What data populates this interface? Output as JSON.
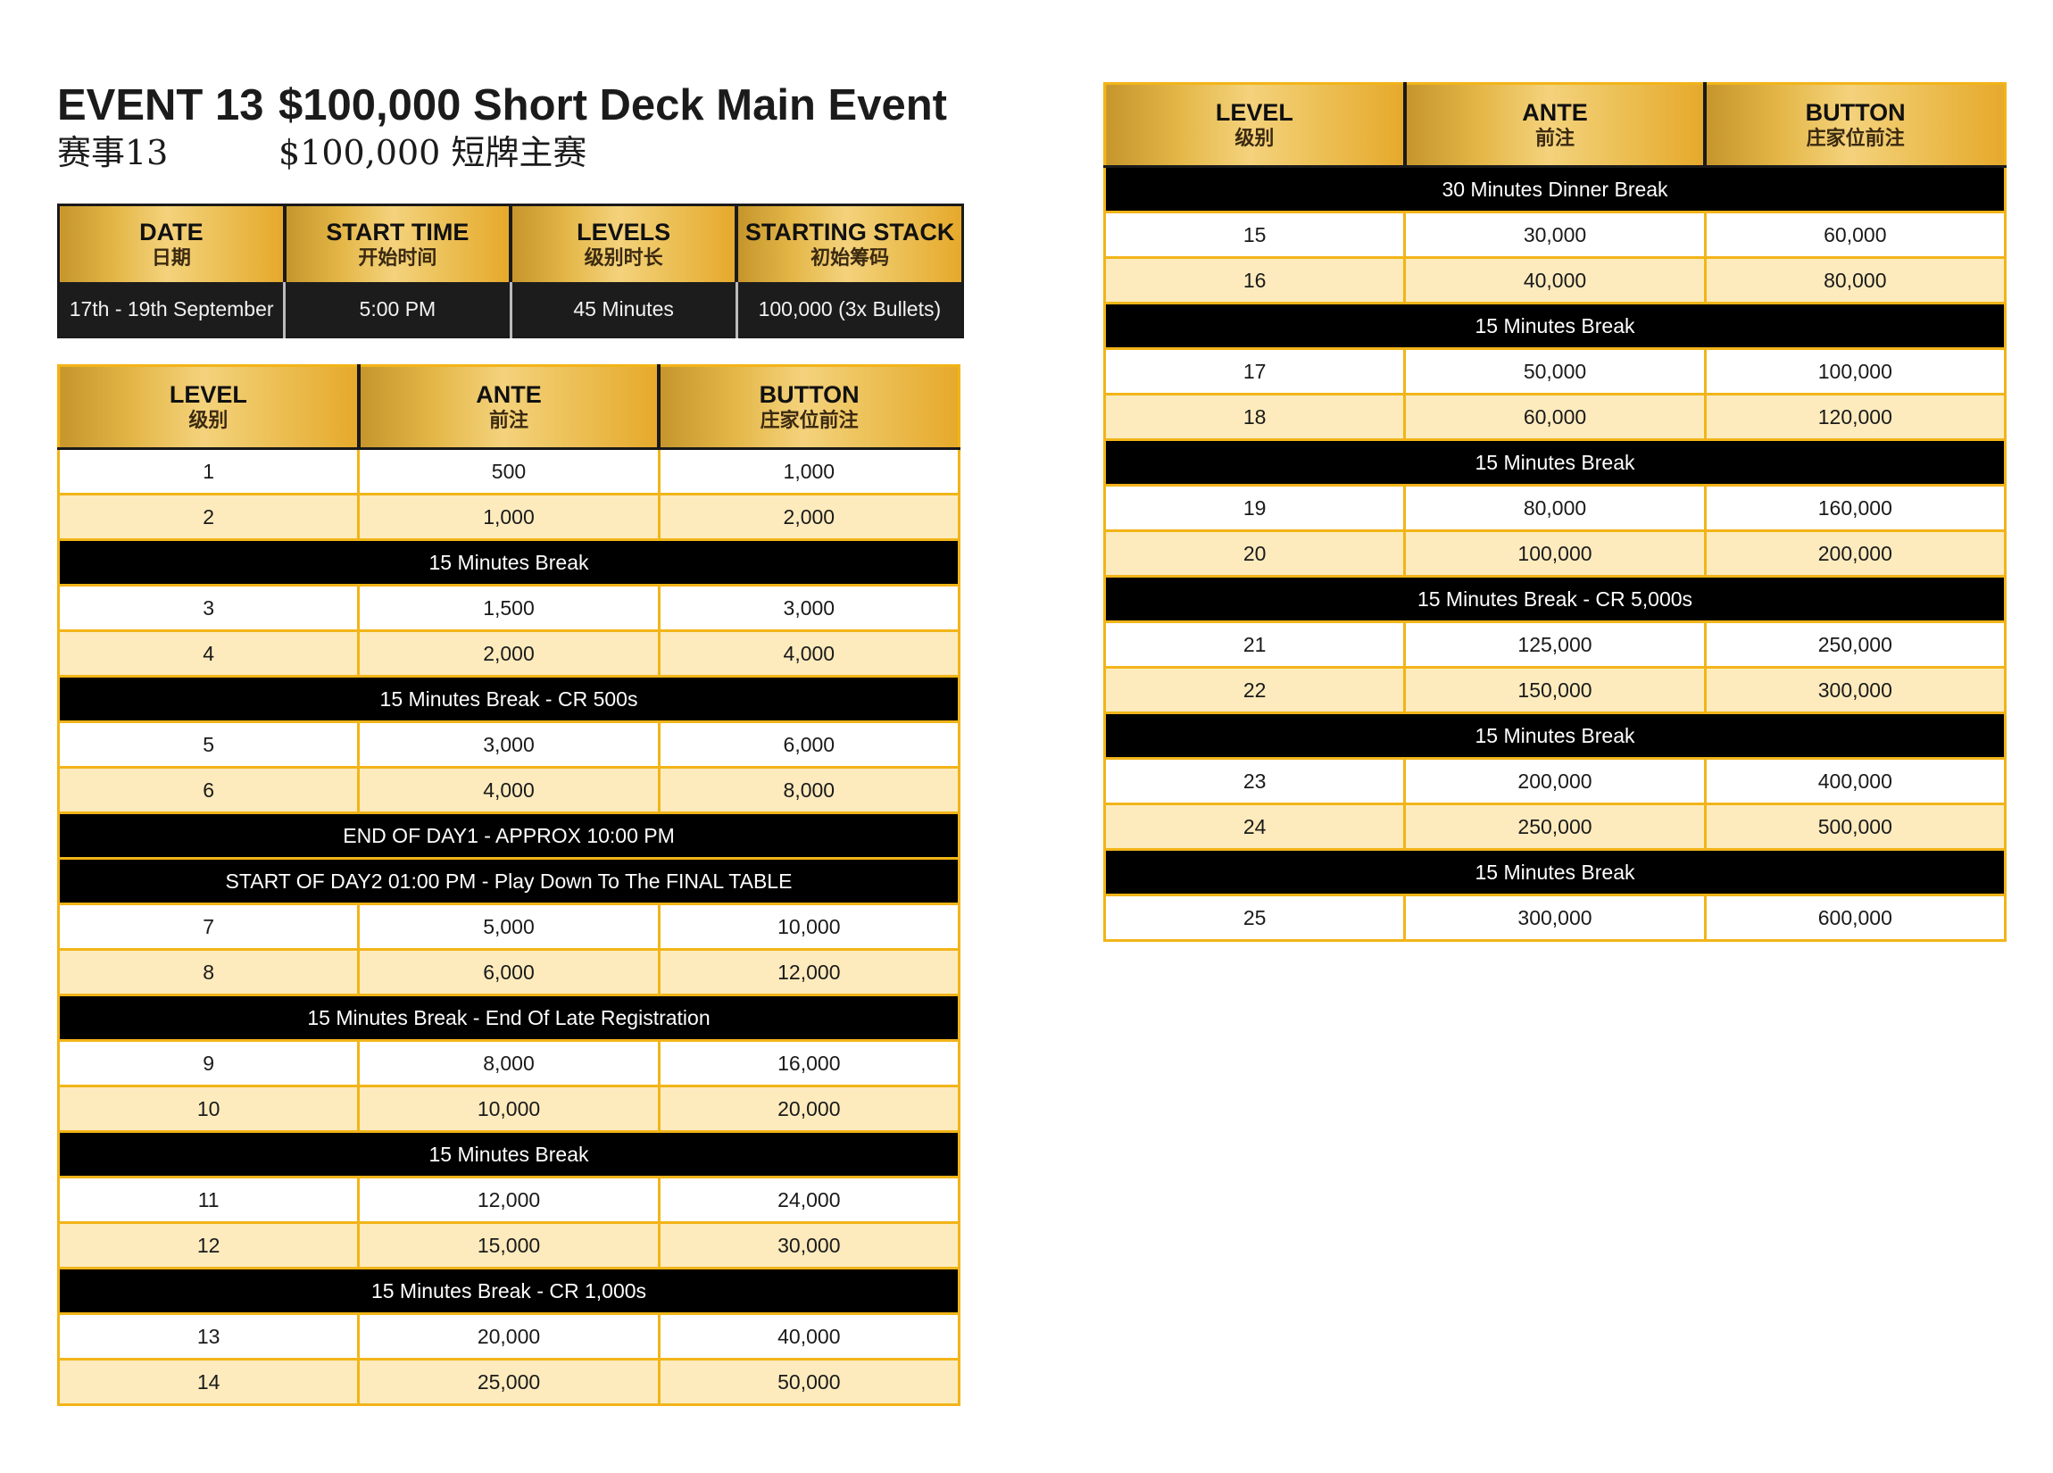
{
  "title": {
    "event_en": "EVENT 13",
    "name_en": "$100,000 Short Deck Main Event",
    "event_cn": "赛事13",
    "name_cn": "$100,000 短牌主赛"
  },
  "info": {
    "headers": [
      {
        "en": "DATE",
        "cn": "日期"
      },
      {
        "en": "START TIME",
        "cn": "开始时间"
      },
      {
        "en": "LEVELS",
        "cn": "级别时长"
      },
      {
        "en": "STARTING STACK",
        "cn": "初始筹码"
      }
    ],
    "values": [
      "17th - 19th September",
      "5:00 PM",
      "45 Minutes",
      "100,000 (3x Bullets)"
    ]
  },
  "structure_headers": [
    {
      "en": "LEVEL",
      "cn": "级别"
    },
    {
      "en": "ANTE",
      "cn": "前注"
    },
    {
      "en": "BUTTON",
      "cn": "庄家位前注"
    }
  ],
  "table_left": [
    {
      "level": "1",
      "ante": "500",
      "button": "1,000"
    },
    {
      "level": "2",
      "ante": "1,000",
      "button": "2,000"
    },
    {
      "break": "15 Minutes Break"
    },
    {
      "level": "3",
      "ante": "1,500",
      "button": "3,000"
    },
    {
      "level": "4",
      "ante": "2,000",
      "button": "4,000"
    },
    {
      "break": "15 Minutes Break  - CR 500s"
    },
    {
      "level": "5",
      "ante": "3,000",
      "button": "6,000"
    },
    {
      "level": "6",
      "ante": "4,000",
      "button": "8,000"
    },
    {
      "break": "END OF DAY1 - APPROX 10:00 PM"
    },
    {
      "break": "START OF DAY2 01:00 PM - Play Down To The FINAL TABLE"
    },
    {
      "level": "7",
      "ante": "5,000",
      "button": "10,000"
    },
    {
      "level": "8",
      "ante": "6,000",
      "button": "12,000"
    },
    {
      "break": "15 Minutes Break - End Of Late Registration"
    },
    {
      "level": "9",
      "ante": "8,000",
      "button": "16,000"
    },
    {
      "level": "10",
      "ante": "10,000",
      "button": "20,000"
    },
    {
      "break": "15 Minutes Break"
    },
    {
      "level": "11",
      "ante": "12,000",
      "button": "24,000"
    },
    {
      "level": "12",
      "ante": "15,000",
      "button": "30,000"
    },
    {
      "break": "15 Minutes Break - CR 1,000s"
    },
    {
      "level": "13",
      "ante": "20,000",
      "button": "40,000"
    },
    {
      "level": "14",
      "ante": "25,000",
      "button": "50,000"
    }
  ],
  "table_right": [
    {
      "break": "30 Minutes Dinner Break"
    },
    {
      "level": "15",
      "ante": "30,000",
      "button": "60,000"
    },
    {
      "level": "16",
      "ante": "40,000",
      "button": "80,000"
    },
    {
      "break": "15 Minutes Break"
    },
    {
      "level": "17",
      "ante": "50,000",
      "button": "100,000"
    },
    {
      "level": "18",
      "ante": "60,000",
      "button": "120,000"
    },
    {
      "break": "15 Minutes Break"
    },
    {
      "level": "19",
      "ante": "80,000",
      "button": "160,000"
    },
    {
      "level": "20",
      "ante": "100,000",
      "button": "200,000"
    },
    {
      "break": "15 Minutes Break - CR 5,000s"
    },
    {
      "level": "21",
      "ante": "125,000",
      "button": "250,000"
    },
    {
      "level": "22",
      "ante": "150,000",
      "button": "300,000"
    },
    {
      "break": "15 Minutes Break"
    },
    {
      "level": "23",
      "ante": "200,000",
      "button": "400,000"
    },
    {
      "level": "24",
      "ante": "250,000",
      "button": "500,000"
    },
    {
      "break": "15 Minutes Break"
    },
    {
      "level": "25",
      "ante": "300,000",
      "button": "600,000"
    }
  ]
}
